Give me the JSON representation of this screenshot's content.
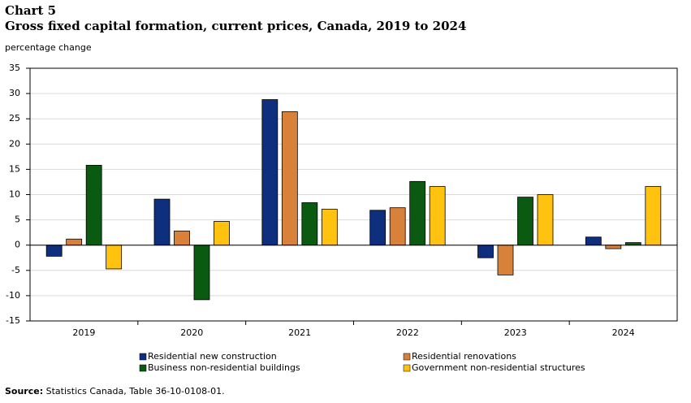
{
  "chart_data": {
    "type": "bar",
    "title": "Chart 5",
    "subtitle": "Gross fixed capital formation, current prices, Canada, 2019 to 2024",
    "y_label": "percentage change",
    "categories": [
      "2019",
      "2020",
      "2021",
      "2022",
      "2023",
      "2024"
    ],
    "series": [
      {
        "name": "Residential new construction",
        "color": "#0e2f7e",
        "values": [
          -2.2,
          9.1,
          28.8,
          6.9,
          -2.5,
          1.6
        ]
      },
      {
        "name": "Residential renovations",
        "color": "#d8813a",
        "values": [
          1.2,
          2.8,
          26.4,
          7.4,
          -5.9,
          -0.7
        ]
      },
      {
        "name": "Business non-residential buildings",
        "color": "#0b5a12",
        "values": [
          15.8,
          -10.8,
          8.4,
          12.6,
          9.5,
          0.5
        ]
      },
      {
        "name": "Government non-residential structures",
        "color": "#ffc20e",
        "values": [
          -4.7,
          4.7,
          7.1,
          11.6,
          10.0,
          11.6
        ]
      }
    ],
    "ylim": [
      -15,
      35
    ],
    "yticks": [
      -15,
      -10,
      -5,
      0,
      5,
      10,
      15,
      20,
      25,
      30,
      35
    ],
    "grid": true,
    "source": {
      "label": "Source:",
      "text": " Statistics Canada, Table 36-10-0108-01."
    }
  }
}
